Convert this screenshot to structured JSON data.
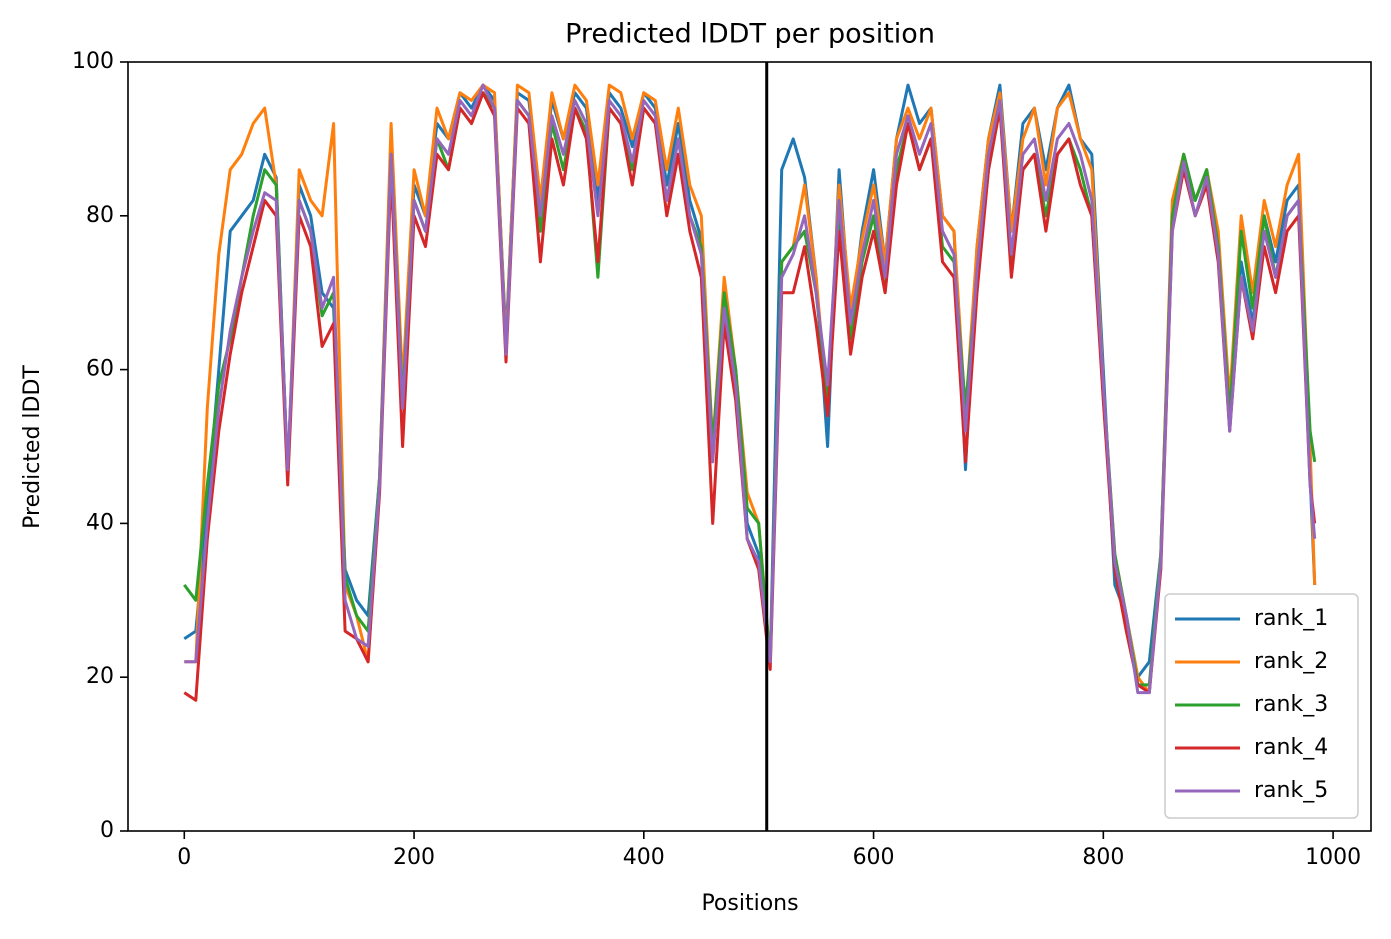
{
  "chart_data": {
    "type": "line",
    "title": "Predicted lDDT per position",
    "xlabel": "Positions",
    "ylabel": "Predicted lDDT",
    "x": [
      0,
      10,
      20,
      30,
      40,
      50,
      60,
      70,
      80,
      90,
      100,
      110,
      120,
      130,
      140,
      150,
      160,
      170,
      180,
      190,
      200,
      210,
      220,
      230,
      240,
      250,
      260,
      270,
      280,
      290,
      300,
      310,
      320,
      330,
      340,
      350,
      360,
      370,
      380,
      390,
      400,
      410,
      420,
      430,
      440,
      450,
      460,
      470,
      480,
      490,
      500,
      510,
      520,
      530,
      540,
      550,
      560,
      570,
      580,
      590,
      600,
      610,
      620,
      630,
      640,
      650,
      660,
      670,
      680,
      690,
      700,
      710,
      720,
      730,
      740,
      750,
      760,
      770,
      780,
      790,
      800,
      810,
      820,
      830,
      840,
      850,
      860,
      870,
      880,
      890,
      900,
      910,
      920,
      930,
      940,
      950,
      960,
      970,
      980,
      984
    ],
    "series": [
      {
        "name": "rank_1",
        "color": "#1f77b4",
        "values": [
          25,
          26,
          42,
          60,
          78,
          80,
          82,
          88,
          85,
          46,
          84,
          80,
          70,
          68,
          34,
          30,
          28,
          46,
          90,
          56,
          84,
          80,
          92,
          90,
          96,
          94,
          97,
          95,
          64,
          96,
          95,
          82,
          95,
          90,
          96,
          94,
          82,
          96,
          94,
          89,
          96,
          94,
          84,
          92,
          82,
          77,
          50,
          70,
          60,
          40,
          36,
          22,
          86,
          90,
          85,
          72,
          50,
          86,
          66,
          78,
          86,
          74,
          90,
          97,
          92,
          94,
          80,
          78,
          47,
          76,
          90,
          97,
          78,
          92,
          94,
          86,
          94,
          97,
          90,
          88,
          60,
          32,
          28,
          20,
          22,
          36,
          80,
          88,
          82,
          86,
          76,
          55,
          74,
          66,
          80,
          74,
          82,
          84,
          46,
          32
        ]
      },
      {
        "name": "rank_2",
        "color": "#ff7f0e",
        "values": [
          22,
          22,
          55,
          75,
          86,
          88,
          92,
          94,
          84,
          46,
          86,
          82,
          80,
          92,
          32,
          28,
          22,
          46,
          92,
          58,
          86,
          80,
          94,
          90,
          96,
          95,
          97,
          96,
          63,
          97,
          96,
          82,
          96,
          90,
          97,
          95,
          84,
          97,
          96,
          90,
          96,
          95,
          86,
          94,
          84,
          80,
          50,
          72,
          60,
          44,
          40,
          22,
          74,
          76,
          84,
          72,
          55,
          84,
          68,
          77,
          84,
          74,
          90,
          94,
          90,
          94,
          80,
          78,
          54,
          76,
          90,
          96,
          78,
          90,
          94,
          84,
          94,
          96,
          90,
          86,
          58,
          36,
          28,
          20,
          18,
          36,
          82,
          88,
          82,
          86,
          78,
          56,
          80,
          70,
          82,
          76,
          84,
          88,
          50,
          32
        ]
      },
      {
        "name": "rank_3",
        "color": "#2ca02c",
        "values": [
          32,
          30,
          45,
          58,
          64,
          72,
          80,
          86,
          84,
          46,
          82,
          78,
          67,
          70,
          33,
          28,
          26,
          46,
          88,
          56,
          82,
          78,
          90,
          86,
          94,
          92,
          96,
          94,
          62,
          95,
          93,
          78,
          92,
          86,
          94,
          91,
          72,
          94,
          92,
          86,
          94,
          92,
          82,
          90,
          80,
          76,
          50,
          70,
          60,
          42,
          40,
          22,
          74,
          76,
          78,
          70,
          56,
          80,
          64,
          74,
          80,
          70,
          86,
          92,
          86,
          90,
          76,
          74,
          55,
          72,
          86,
          94,
          74,
          86,
          88,
          80,
          88,
          90,
          86,
          80,
          58,
          36,
          28,
          19,
          19,
          36,
          80,
          88,
          82,
          86,
          76,
          54,
          78,
          68,
          80,
          72,
          80,
          82,
          52,
          48
        ]
      },
      {
        "name": "rank_4",
        "color": "#d62728",
        "values": [
          18,
          17,
          38,
          52,
          62,
          70,
          76,
          82,
          80,
          45,
          80,
          76,
          63,
          66,
          26,
          25,
          22,
          44,
          86,
          50,
          80,
          76,
          88,
          86,
          94,
          92,
          96,
          93,
          61,
          94,
          92,
          74,
          90,
          84,
          94,
          90,
          74,
          94,
          92,
          84,
          94,
          92,
          80,
          88,
          78,
          72,
          40,
          66,
          56,
          38,
          34,
          21,
          70,
          70,
          76,
          66,
          54,
          78,
          62,
          72,
          78,
          70,
          84,
          92,
          86,
          90,
          74,
          72,
          48,
          70,
          86,
          94,
          72,
          86,
          88,
          78,
          88,
          90,
          84,
          80,
          56,
          34,
          26,
          19,
          18,
          34,
          78,
          86,
          80,
          84,
          74,
          52,
          72,
          64,
          76,
          70,
          78,
          80,
          45,
          40
        ]
      },
      {
        "name": "rank_5",
        "color": "#9467bd",
        "values": [
          22,
          22,
          40,
          55,
          65,
          72,
          78,
          83,
          82,
          47,
          82,
          78,
          68,
          72,
          30,
          25,
          24,
          45,
          88,
          55,
          82,
          78,
          90,
          88,
          95,
          93,
          97,
          94,
          62,
          95,
          93,
          80,
          93,
          88,
          95,
          92,
          80,
          95,
          93,
          87,
          95,
          93,
          82,
          90,
          80,
          75,
          48,
          68,
          58,
          38,
          35,
          22,
          72,
          75,
          80,
          70,
          58,
          82,
          66,
          75,
          82,
          72,
          88,
          93,
          88,
          92,
          78,
          75,
          52,
          73,
          88,
          95,
          75,
          88,
          90,
          82,
          90,
          92,
          88,
          82,
          58,
          35,
          28,
          18,
          18,
          35,
          78,
          87,
          80,
          85,
          75,
          52,
          72,
          65,
          78,
          72,
          80,
          82,
          45,
          38
        ]
      }
    ],
    "vline": 507,
    "vline_color": "#000000",
    "xlim": [
      -49,
      1033
    ],
    "xticks": [
      0,
      200,
      400,
      600,
      800,
      1000
    ],
    "ylim": [
      0,
      100
    ],
    "yticks": [
      0,
      20,
      40,
      60,
      80,
      100
    ],
    "grid": false,
    "legend": "lower right"
  }
}
